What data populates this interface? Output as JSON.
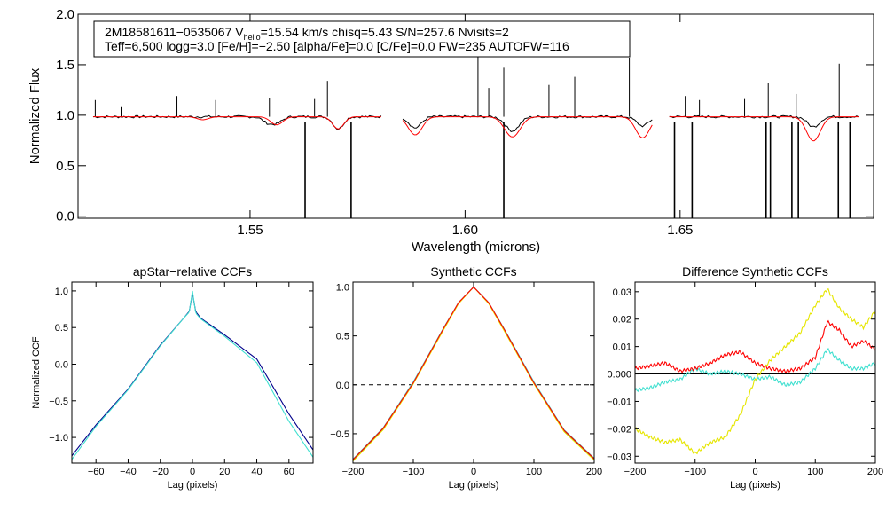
{
  "chart_data": [
    {
      "id": "spectrum",
      "type": "line",
      "title": "",
      "xlabel": "Wavelength (microns)",
      "ylabel": "Normalized Flux",
      "xlim": [
        1.51,
        1.695
      ],
      "ylim": [
        -0.02,
        2.0
      ],
      "xticks": [
        1.55,
        1.6,
        1.65
      ],
      "xtick_labels": [
        "1.55",
        "1.60",
        "1.65"
      ],
      "yticks": [
        0.0,
        0.5,
        1.0,
        1.5,
        2.0
      ],
      "ytick_labels": [
        "0.0",
        "0.5",
        "1.0",
        "1.5",
        "2.0"
      ],
      "annotation": {
        "line1_pre": "2M18581611−0535067  V",
        "line1_sub": "helio",
        "line1_post": "=15.54 km/s  chisq=5.43  S/N=257.6  Nvisits=2",
        "line2": "Teff=6,500 logg=3.0 [Fe/H]=−2.50 [alpha/Fe]=0.0 [C/Fe]=0.0 FW=235 AUTOFW=116"
      },
      "chips": [
        [
          1.5135,
          1.5805
        ],
        [
          1.5855,
          1.6435
        ],
        [
          1.6475,
          1.6915
        ]
      ],
      "series": [
        {
          "name": "observed",
          "color": "#000000",
          "continuum": 0.985,
          "noise": 0.012,
          "absorption": [
            {
              "center": 1.554,
              "depth": 0.05,
              "width": 0.0012
            },
            {
              "center": 1.5562,
              "depth": 0.06,
              "width": 0.0013
            },
            {
              "center": 1.5705,
              "depth": 0.12,
              "width": 0.0012
            },
            {
              "center": 1.5884,
              "depth": 0.11,
              "width": 0.0014
            },
            {
              "center": 1.611,
              "depth": 0.14,
              "width": 0.0016
            },
            {
              "center": 1.6413,
              "depth": 0.09,
              "width": 0.0014
            },
            {
              "center": 1.681,
              "depth": 0.1,
              "width": 0.0014
            }
          ],
          "emission_spikes": [
            {
              "x": 1.514,
              "y": 1.15
            },
            {
              "x": 1.52,
              "y": 1.08
            },
            {
              "x": 1.533,
              "y": 1.19
            },
            {
              "x": 1.542,
              "y": 1.15
            },
            {
              "x": 1.5545,
              "y": 1.17
            },
            {
              "x": 1.565,
              "y": 1.16
            },
            {
              "x": 1.568,
              "y": 1.34
            },
            {
              "x": 1.603,
              "y": 1.61
            },
            {
              "x": 1.6055,
              "y": 1.27
            },
            {
              "x": 1.609,
              "y": 1.47
            },
            {
              "x": 1.6195,
              "y": 1.3
            },
            {
              "x": 1.6255,
              "y": 1.38
            },
            {
              "x": 1.6382,
              "y": 1.57
            },
            {
              "x": 1.6512,
              "y": 1.19
            },
            {
              "x": 1.6545,
              "y": 1.15
            },
            {
              "x": 1.665,
              "y": 1.16
            },
            {
              "x": 1.6705,
              "y": 1.32
            },
            {
              "x": 1.677,
              "y": 1.21
            },
            {
              "x": 1.687,
              "y": 1.51
            }
          ],
          "drop_lines": [
            1.5628,
            1.5735,
            1.609,
            1.6487,
            1.6528,
            1.67,
            1.671,
            1.676,
            1.6775,
            1.6868,
            1.6895
          ]
        },
        {
          "name": "model",
          "color": "#ff0000",
          "continuum": 0.985,
          "absorption": [
            {
              "center": 1.539,
              "depth": 0.03,
              "width": 0.0013
            },
            {
              "center": 1.5562,
              "depth": 0.08,
              "width": 0.0014
            },
            {
              "center": 1.5705,
              "depth": 0.12,
              "width": 0.0013
            },
            {
              "center": 1.5884,
              "depth": 0.18,
              "width": 0.0016
            },
            {
              "center": 1.611,
              "depth": 0.2,
              "width": 0.0018
            },
            {
              "center": 1.6413,
              "depth": 0.21,
              "width": 0.0016
            },
            {
              "center": 1.681,
              "depth": 0.24,
              "width": 0.0016
            }
          ]
        }
      ]
    },
    {
      "id": "apstar_ccf",
      "type": "line",
      "title": "apStar−relative CCFs",
      "xlabel": "Lag (pixels)",
      "ylabel": "Normalized CCF",
      "xlim": [
        -75,
        75
      ],
      "ylim": [
        -1.35,
        1.12
      ],
      "xticks": [
        -60,
        -40,
        -20,
        0,
        20,
        40,
        60
      ],
      "xtick_labels": [
        "−60",
        "−40",
        "−20",
        "0",
        "20",
        "40",
        "60"
      ],
      "yticks": [
        -1.0,
        -0.5,
        0.0,
        0.5,
        1.0
      ],
      "ytick_labels": [
        "−1.0",
        "−0.5",
        "0.0",
        "0.5",
        "1.0"
      ],
      "series": [
        {
          "name": "ccf_a",
          "color": "#00008b",
          "x": [
            -75,
            -60,
            -40,
            -20,
            -5,
            -2,
            0,
            2,
            5,
            20,
            40,
            60,
            75
          ],
          "values": [
            -1.25,
            -0.83,
            -0.34,
            0.26,
            0.64,
            0.72,
            0.97,
            0.72,
            0.63,
            0.4,
            0.07,
            -0.68,
            -1.17
          ]
        },
        {
          "name": "ccf_b",
          "color": "#40e0d0",
          "x": [
            -75,
            -60,
            -40,
            -20,
            -5,
            -2,
            0,
            2,
            5,
            20,
            40,
            60,
            75
          ],
          "values": [
            -1.3,
            -0.85,
            -0.35,
            0.25,
            0.64,
            0.71,
            1.0,
            0.7,
            0.62,
            0.38,
            0.02,
            -0.78,
            -1.27
          ]
        }
      ]
    },
    {
      "id": "synthetic_ccf",
      "type": "line",
      "title": "Synthetic CCFs",
      "xlabel": "Lag (pixels)",
      "ylabel": "",
      "xlim": [
        -200,
        200
      ],
      "ylim": [
        -0.8,
        1.05
      ],
      "xticks": [
        -200,
        -100,
        0,
        100,
        200
      ],
      "xtick_labels": [
        "−200",
        "−100",
        "0",
        "100",
        "200"
      ],
      "yticks": [
        -0.5,
        0.0,
        0.5,
        1.0
      ],
      "ytick_labels": [
        "−0.5",
        "0.0",
        "0.5",
        "1.0"
      ],
      "hline": {
        "y": 0.0,
        "style": "dashed"
      },
      "series": [
        {
          "name": "synth_a",
          "color": "#00008b",
          "x": [
            -200,
            -150,
            -100,
            -50,
            -25,
            0,
            25,
            50,
            100,
            150,
            200
          ],
          "values": [
            -0.77,
            -0.45,
            0.02,
            0.57,
            0.84,
            1.0,
            0.84,
            0.57,
            0.02,
            -0.47,
            -0.76
          ]
        },
        {
          "name": "synth_b",
          "color": "#40e0d0",
          "x": [
            -200,
            -150,
            -100,
            -50,
            -25,
            0,
            25,
            50,
            100,
            150,
            200
          ],
          "values": [
            -0.76,
            -0.44,
            0.03,
            0.58,
            0.84,
            1.0,
            0.84,
            0.58,
            0.03,
            -0.46,
            -0.75
          ]
        },
        {
          "name": "synth_c",
          "color": "#e6e600",
          "x": [
            -200,
            -150,
            -100,
            -50,
            -25,
            0,
            25,
            50,
            100,
            150,
            200
          ],
          "values": [
            -0.78,
            -0.46,
            0.01,
            0.56,
            0.83,
            1.0,
            0.83,
            0.56,
            0.01,
            -0.48,
            -0.77
          ]
        },
        {
          "name": "synth_d",
          "color": "#ff0000",
          "x": [
            -200,
            -150,
            -100,
            -50,
            -25,
            0,
            25,
            50,
            100,
            150,
            200
          ],
          "values": [
            -0.765,
            -0.445,
            0.02,
            0.575,
            0.84,
            1.0,
            0.84,
            0.575,
            0.02,
            -0.465,
            -0.755
          ]
        }
      ]
    },
    {
      "id": "diff_ccf",
      "type": "line",
      "title": "Difference Synthetic CCFs",
      "xlabel": "Lag (pixels)",
      "ylabel": "",
      "xlim": [
        -200,
        200
      ],
      "ylim": [
        -0.0325,
        0.0335
      ],
      "xticks": [
        -200,
        -100,
        0,
        100,
        200
      ],
      "xtick_labels": [
        "−200",
        "−100",
        "0",
        "100",
        "200"
      ],
      "yticks": [
        -0.03,
        -0.02,
        -0.01,
        0.0,
        0.01,
        0.02,
        0.03
      ],
      "ytick_labels": [
        "−0.03",
        "−0.02",
        "−0.01",
        "0.000",
        "0.01",
        "0.02",
        "0.03"
      ],
      "hline": {
        "y": 0.0,
        "style": "solid"
      },
      "series": [
        {
          "name": "diff_cyan",
          "color": "#40e0d0",
          "x": [
            -200,
            -175,
            -150,
            -125,
            -100,
            -75,
            -50,
            -25,
            0,
            25,
            50,
            75,
            100,
            120,
            140,
            160,
            180,
            200
          ],
          "values": [
            -0.006,
            -0.005,
            -0.003,
            -0.002,
            0.002,
            0.0,
            0.001,
            0.0,
            -0.002,
            -0.001,
            -0.004,
            -0.003,
            0.002,
            0.009,
            0.005,
            0.002,
            0.002,
            0.004
          ]
        },
        {
          "name": "diff_red",
          "color": "#ff0000",
          "x": [
            -200,
            -175,
            -150,
            -125,
            -100,
            -75,
            -50,
            -25,
            0,
            25,
            50,
            75,
            100,
            120,
            140,
            160,
            180,
            200
          ],
          "values": [
            0.002,
            0.003,
            0.004,
            0.001,
            0.002,
            0.004,
            0.007,
            0.008,
            0.004,
            0.002,
            0.001,
            0.002,
            0.006,
            0.019,
            0.016,
            0.01,
            0.012,
            0.009
          ]
        },
        {
          "name": "diff_yellow",
          "color": "#e6e600",
          "x": [
            -200,
            -175,
            -150,
            -125,
            -100,
            -75,
            -50,
            -25,
            0,
            25,
            50,
            75,
            100,
            120,
            140,
            160,
            180,
            200
          ],
          "values": [
            -0.02,
            -0.023,
            -0.025,
            -0.024,
            -0.029,
            -0.025,
            -0.023,
            -0.015,
            -0.002,
            0.005,
            0.01,
            0.015,
            0.025,
            0.031,
            0.024,
            0.02,
            0.017,
            0.023
          ]
        }
      ]
    }
  ]
}
